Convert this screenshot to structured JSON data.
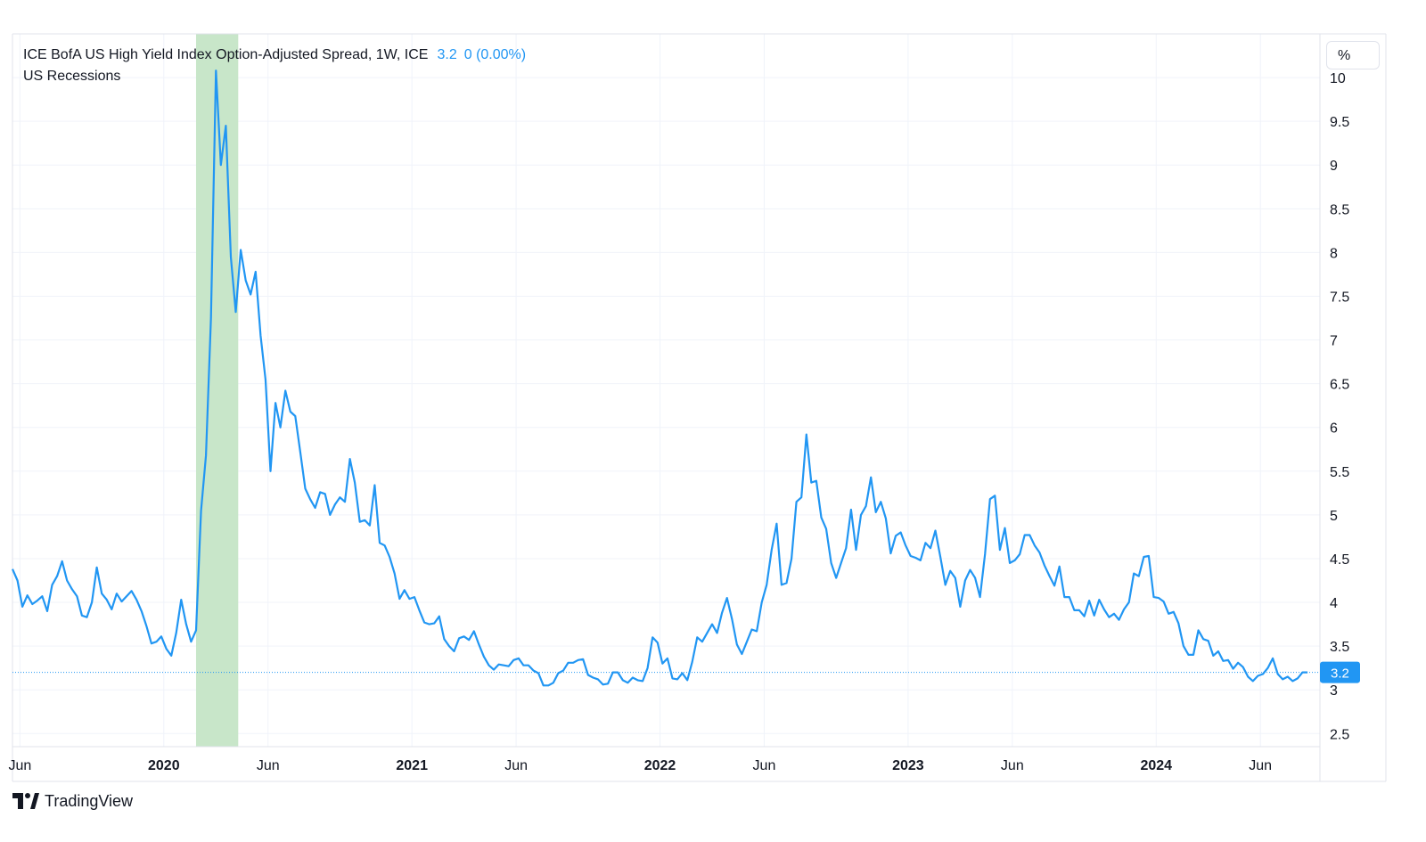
{
  "legend": {
    "title": "ICE BofA US High Yield Index Option-Adjusted Spread, 1W, ICE",
    "last_value": "3.2",
    "change": "0 (0.00%)",
    "recession_label": "US Recessions"
  },
  "unit_button": "%",
  "price_label": "3.2",
  "brand": {
    "name": "TradingView"
  },
  "colors": {
    "line": "#2196f3",
    "recession": "#c8e6c9",
    "grid": "#f0f3fa",
    "price_tag": "#2196f3"
  },
  "chart_data": {
    "type": "line",
    "title": "ICE BofA US High Yield Index Option-Adjusted Spread, 1W, ICE",
    "xlabel": "",
    "ylabel": "%",
    "x_range": [
      2019.39,
      2024.66
    ],
    "ylim": [
      2.35,
      10.5
    ],
    "y_ticks": [
      2.5,
      3,
      3.5,
      4,
      4.5,
      5,
      5.5,
      6,
      6.5,
      7,
      7.5,
      8,
      8.5,
      9,
      9.5,
      10
    ],
    "x_ticks": [
      {
        "x": 2019.42,
        "label": "Jun",
        "bold": false
      },
      {
        "x": 2020.0,
        "label": "2020",
        "bold": true
      },
      {
        "x": 2020.42,
        "label": "Jun",
        "bold": false
      },
      {
        "x": 2021.0,
        "label": "2021",
        "bold": true
      },
      {
        "x": 2021.42,
        "label": "Jun",
        "bold": false
      },
      {
        "x": 2022.0,
        "label": "2022",
        "bold": true
      },
      {
        "x": 2022.42,
        "label": "Jun",
        "bold": false
      },
      {
        "x": 2023.0,
        "label": "2023",
        "bold": true
      },
      {
        "x": 2023.42,
        "label": "Jun",
        "bold": false
      },
      {
        "x": 2024.0,
        "label": "2024",
        "bold": true
      },
      {
        "x": 2024.42,
        "label": "Jun",
        "bold": false
      }
    ],
    "recession": [
      2020.13,
      2020.3
    ],
    "last_value": 3.2,
    "series": [
      {
        "name": "ICE BofA US High Yield Index Option-Adjusted Spread",
        "points": [
          [
            2019.39,
            4.38
          ],
          [
            2019.41,
            4.25
          ],
          [
            2019.43,
            3.95
          ],
          [
            2019.45,
            4.08
          ],
          [
            2019.47,
            3.98
          ],
          [
            2019.49,
            4.02
          ],
          [
            2019.51,
            4.07
          ],
          [
            2019.53,
            3.9
          ],
          [
            2019.55,
            4.2
          ],
          [
            2019.57,
            4.3
          ],
          [
            2019.59,
            4.47
          ],
          [
            2019.61,
            4.25
          ],
          [
            2019.63,
            4.15
          ],
          [
            2019.65,
            4.07
          ],
          [
            2019.67,
            3.85
          ],
          [
            2019.69,
            3.83
          ],
          [
            2019.71,
            4.0
          ],
          [
            2019.73,
            4.4
          ],
          [
            2019.75,
            4.1
          ],
          [
            2019.77,
            4.03
          ],
          [
            2019.79,
            3.92
          ],
          [
            2019.81,
            4.1
          ],
          [
            2019.83,
            4.01
          ],
          [
            2019.85,
            4.07
          ],
          [
            2019.87,
            4.13
          ],
          [
            2019.89,
            4.03
          ],
          [
            2019.91,
            3.9
          ],
          [
            2019.93,
            3.73
          ],
          [
            2019.95,
            3.53
          ],
          [
            2019.97,
            3.55
          ],
          [
            2019.99,
            3.61
          ],
          [
            2020.01,
            3.47
          ],
          [
            2020.03,
            3.39
          ],
          [
            2020.05,
            3.65
          ],
          [
            2020.07,
            4.03
          ],
          [
            2020.09,
            3.75
          ],
          [
            2020.11,
            3.55
          ],
          [
            2020.13,
            3.68
          ],
          [
            2020.15,
            5.05
          ],
          [
            2020.17,
            5.68
          ],
          [
            2020.19,
            7.25
          ],
          [
            2020.21,
            10.08
          ],
          [
            2020.23,
            9.0
          ],
          [
            2020.25,
            9.45
          ],
          [
            2020.27,
            7.95
          ],
          [
            2020.29,
            7.32
          ],
          [
            2020.31,
            8.03
          ],
          [
            2020.33,
            7.68
          ],
          [
            2020.35,
            7.52
          ],
          [
            2020.37,
            7.78
          ],
          [
            2020.39,
            7.05
          ],
          [
            2020.41,
            6.55
          ],
          [
            2020.43,
            5.5
          ],
          [
            2020.45,
            6.28
          ],
          [
            2020.47,
            6.0
          ],
          [
            2020.49,
            6.42
          ],
          [
            2020.51,
            6.18
          ],
          [
            2020.53,
            6.13
          ],
          [
            2020.55,
            5.72
          ],
          [
            2020.57,
            5.3
          ],
          [
            2020.59,
            5.18
          ],
          [
            2020.61,
            5.08
          ],
          [
            2020.63,
            5.26
          ],
          [
            2020.65,
            5.24
          ],
          [
            2020.67,
            5.0
          ],
          [
            2020.69,
            5.12
          ],
          [
            2020.71,
            5.2
          ],
          [
            2020.73,
            5.15
          ],
          [
            2020.75,
            5.64
          ],
          [
            2020.77,
            5.37
          ],
          [
            2020.79,
            4.92
          ],
          [
            2020.81,
            4.94
          ],
          [
            2020.83,
            4.88
          ],
          [
            2020.85,
            5.34
          ],
          [
            2020.87,
            4.68
          ],
          [
            2020.89,
            4.65
          ],
          [
            2020.91,
            4.52
          ],
          [
            2020.93,
            4.33
          ],
          [
            2020.95,
            4.04
          ],
          [
            2020.97,
            4.14
          ],
          [
            2020.99,
            4.04
          ],
          [
            2021.01,
            4.06
          ],
          [
            2021.03,
            3.91
          ],
          [
            2021.05,
            3.77
          ],
          [
            2021.07,
            3.75
          ],
          [
            2021.09,
            3.76
          ],
          [
            2021.11,
            3.84
          ],
          [
            2021.13,
            3.58
          ],
          [
            2021.15,
            3.5
          ],
          [
            2021.17,
            3.44
          ],
          [
            2021.19,
            3.59
          ],
          [
            2021.21,
            3.61
          ],
          [
            2021.23,
            3.57
          ],
          [
            2021.25,
            3.67
          ],
          [
            2021.27,
            3.52
          ],
          [
            2021.29,
            3.38
          ],
          [
            2021.31,
            3.28
          ],
          [
            2021.33,
            3.23
          ],
          [
            2021.35,
            3.29
          ],
          [
            2021.37,
            3.28
          ],
          [
            2021.39,
            3.27
          ],
          [
            2021.41,
            3.34
          ],
          [
            2021.43,
            3.36
          ],
          [
            2021.45,
            3.28
          ],
          [
            2021.47,
            3.28
          ],
          [
            2021.49,
            3.22
          ],
          [
            2021.51,
            3.19
          ],
          [
            2021.53,
            3.05
          ],
          [
            2021.55,
            3.05
          ],
          [
            2021.57,
            3.08
          ],
          [
            2021.59,
            3.19
          ],
          [
            2021.61,
            3.22
          ],
          [
            2021.63,
            3.31
          ],
          [
            2021.65,
            3.31
          ],
          [
            2021.67,
            3.34
          ],
          [
            2021.69,
            3.35
          ],
          [
            2021.71,
            3.17
          ],
          [
            2021.73,
            3.14
          ],
          [
            2021.75,
            3.12
          ],
          [
            2021.77,
            3.06
          ],
          [
            2021.79,
            3.07
          ],
          [
            2021.81,
            3.2
          ],
          [
            2021.83,
            3.2
          ],
          [
            2021.85,
            3.11
          ],
          [
            2021.87,
            3.08
          ],
          [
            2021.89,
            3.14
          ],
          [
            2021.91,
            3.11
          ],
          [
            2021.93,
            3.1
          ],
          [
            2021.95,
            3.25
          ],
          [
            2021.97,
            3.6
          ],
          [
            2021.99,
            3.54
          ],
          [
            2022.01,
            3.3
          ],
          [
            2022.03,
            3.36
          ],
          [
            2022.05,
            3.13
          ],
          [
            2022.07,
            3.12
          ],
          [
            2022.09,
            3.19
          ],
          [
            2022.11,
            3.11
          ],
          [
            2022.13,
            3.32
          ],
          [
            2022.15,
            3.6
          ],
          [
            2022.17,
            3.55
          ],
          [
            2022.19,
            3.65
          ],
          [
            2022.21,
            3.75
          ],
          [
            2022.23,
            3.65
          ],
          [
            2022.25,
            3.88
          ],
          [
            2022.27,
            4.05
          ],
          [
            2022.29,
            3.81
          ],
          [
            2022.31,
            3.52
          ],
          [
            2022.33,
            3.41
          ],
          [
            2022.35,
            3.55
          ],
          [
            2022.37,
            3.69
          ],
          [
            2022.39,
            3.67
          ],
          [
            2022.41,
            4.0
          ],
          [
            2022.43,
            4.2
          ],
          [
            2022.45,
            4.6
          ],
          [
            2022.47,
            4.9
          ],
          [
            2022.49,
            4.2
          ],
          [
            2022.51,
            4.22
          ],
          [
            2022.53,
            4.5
          ],
          [
            2022.55,
            5.15
          ],
          [
            2022.57,
            5.2
          ],
          [
            2022.59,
            5.92
          ],
          [
            2022.61,
            5.37
          ],
          [
            2022.63,
            5.39
          ],
          [
            2022.65,
            4.97
          ],
          [
            2022.67,
            4.84
          ],
          [
            2022.69,
            4.45
          ],
          [
            2022.71,
            4.28
          ],
          [
            2022.73,
            4.45
          ],
          [
            2022.75,
            4.62
          ],
          [
            2022.77,
            5.06
          ],
          [
            2022.79,
            4.6
          ],
          [
            2022.81,
            5.0
          ],
          [
            2022.83,
            5.1
          ],
          [
            2022.85,
            5.43
          ],
          [
            2022.87,
            5.03
          ],
          [
            2022.89,
            5.15
          ],
          [
            2022.91,
            4.96
          ],
          [
            2022.93,
            4.56
          ],
          [
            2022.95,
            4.76
          ],
          [
            2022.97,
            4.8
          ],
          [
            2022.99,
            4.65
          ],
          [
            2023.01,
            4.53
          ],
          [
            2023.03,
            4.51
          ],
          [
            2023.05,
            4.48
          ],
          [
            2023.07,
            4.68
          ],
          [
            2023.09,
            4.62
          ],
          [
            2023.11,
            4.82
          ],
          [
            2023.13,
            4.52
          ],
          [
            2023.15,
            4.2
          ],
          [
            2023.17,
            4.36
          ],
          [
            2023.19,
            4.28
          ],
          [
            2023.21,
            3.95
          ],
          [
            2023.23,
            4.25
          ],
          [
            2023.25,
            4.37
          ],
          [
            2023.27,
            4.28
          ],
          [
            2023.29,
            4.06
          ],
          [
            2023.31,
            4.55
          ],
          [
            2023.33,
            5.18
          ],
          [
            2023.35,
            5.22
          ],
          [
            2023.37,
            4.6
          ],
          [
            2023.39,
            4.85
          ],
          [
            2023.41,
            4.45
          ],
          [
            2023.43,
            4.48
          ],
          [
            2023.45,
            4.55
          ],
          [
            2023.47,
            4.77
          ],
          [
            2023.49,
            4.77
          ],
          [
            2023.51,
            4.65
          ],
          [
            2023.53,
            4.57
          ],
          [
            2023.55,
            4.42
          ],
          [
            2023.57,
            4.3
          ],
          [
            2023.59,
            4.19
          ],
          [
            2023.61,
            4.41
          ],
          [
            2023.63,
            4.06
          ],
          [
            2023.65,
            4.06
          ],
          [
            2023.67,
            3.91
          ],
          [
            2023.69,
            3.91
          ],
          [
            2023.71,
            3.84
          ],
          [
            2023.73,
            4.02
          ],
          [
            2023.75,
            3.85
          ],
          [
            2023.77,
            4.03
          ],
          [
            2023.79,
            3.92
          ],
          [
            2023.81,
            3.83
          ],
          [
            2023.83,
            3.87
          ],
          [
            2023.85,
            3.8
          ],
          [
            2023.87,
            3.92
          ],
          [
            2023.89,
            4.0
          ],
          [
            2023.91,
            4.33
          ],
          [
            2023.93,
            4.3
          ],
          [
            2023.95,
            4.52
          ],
          [
            2023.97,
            4.53
          ],
          [
            2023.99,
            4.06
          ],
          [
            2024.01,
            4.05
          ],
          [
            2024.03,
            4.01
          ],
          [
            2024.05,
            3.87
          ],
          [
            2024.07,
            3.89
          ],
          [
            2024.09,
            3.76
          ],
          [
            2024.11,
            3.5
          ],
          [
            2024.13,
            3.4
          ],
          [
            2024.15,
            3.4
          ],
          [
            2024.17,
            3.68
          ],
          [
            2024.19,
            3.58
          ],
          [
            2024.21,
            3.56
          ],
          [
            2024.23,
            3.39
          ],
          [
            2024.25,
            3.44
          ],
          [
            2024.27,
            3.33
          ],
          [
            2024.29,
            3.34
          ],
          [
            2024.31,
            3.24
          ],
          [
            2024.33,
            3.31
          ],
          [
            2024.35,
            3.26
          ],
          [
            2024.37,
            3.15
          ],
          [
            2024.39,
            3.1
          ],
          [
            2024.41,
            3.16
          ],
          [
            2024.43,
            3.18
          ],
          [
            2024.45,
            3.25
          ],
          [
            2024.47,
            3.36
          ],
          [
            2024.49,
            3.18
          ],
          [
            2024.51,
            3.12
          ],
          [
            2024.53,
            3.15
          ],
          [
            2024.55,
            3.1
          ],
          [
            2024.57,
            3.13
          ],
          [
            2024.59,
            3.2
          ],
          [
            2024.61,
            3.2
          ]
        ]
      }
    ]
  }
}
